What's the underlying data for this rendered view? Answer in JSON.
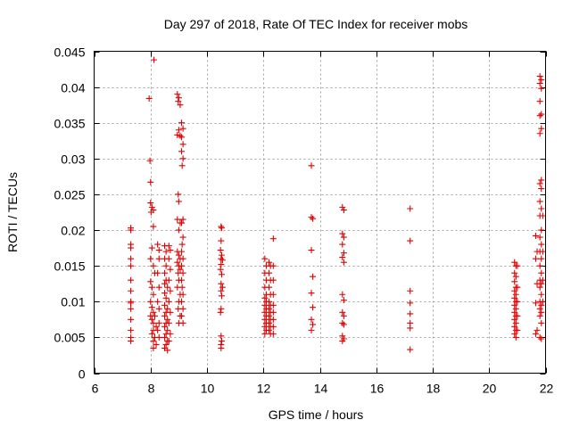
{
  "chart_data": {
    "type": "scatter",
    "title": "Day 297 of 2018, Rate Of TEC Index for receiver mobs",
    "xlabel": "GPS time / hours",
    "ylabel": "ROTI / TECUs",
    "xlim": [
      6,
      22
    ],
    "ylim": [
      0,
      0.045
    ],
    "x_ticks": [
      6,
      8,
      10,
      12,
      14,
      16,
      18,
      20,
      22
    ],
    "x_tick_labels": [
      "6",
      "8",
      "10",
      "12",
      "14",
      "16",
      "18",
      "20",
      "22"
    ],
    "y_ticks": [
      0,
      0.005,
      0.01,
      0.015,
      0.02,
      0.025,
      0.03,
      0.035,
      0.04,
      0.045
    ],
    "y_tick_labels": [
      "0",
      "0.005",
      "0.01",
      "0.015",
      "0.02",
      "0.025",
      "0.03",
      "0.035",
      "0.04",
      "0.045"
    ],
    "grid": true,
    "marker": "plus",
    "color": "#e00000",
    "series": [
      {
        "name": "ROTI",
        "points": [
          [
            7.3,
            0.0203
          ],
          [
            7.3,
            0.02
          ],
          [
            7.3,
            0.018
          ],
          [
            7.3,
            0.0175
          ],
          [
            7.3,
            0.016
          ],
          [
            7.3,
            0.015
          ],
          [
            7.3,
            0.013
          ],
          [
            7.3,
            0.0115
          ],
          [
            7.3,
            0.01
          ],
          [
            7.3,
            0.0098
          ],
          [
            7.3,
            0.009
          ],
          [
            7.3,
            0.0075
          ],
          [
            7.3,
            0.006
          ],
          [
            7.3,
            0.005
          ],
          [
            7.3,
            0.0045
          ],
          [
            7.95,
            0.0384
          ],
          [
            7.98,
            0.0297
          ],
          [
            8.0,
            0.0267
          ],
          [
            8.0,
            0.0238
          ],
          [
            8.02,
            0.0225
          ],
          [
            8.05,
            0.0232
          ],
          [
            8.1,
            0.0228
          ],
          [
            8.1,
            0.0205
          ],
          [
            8.05,
            0.0175
          ],
          [
            8.0,
            0.016
          ],
          [
            8.1,
            0.015
          ],
          [
            8.15,
            0.014
          ],
          [
            8.0,
            0.0128
          ],
          [
            8.05,
            0.012
          ],
          [
            8.1,
            0.011
          ],
          [
            8.0,
            0.01
          ],
          [
            8.05,
            0.0092
          ],
          [
            8.1,
            0.0085
          ],
          [
            8.0,
            0.008
          ],
          [
            8.15,
            0.008
          ],
          [
            8.05,
            0.0075
          ],
          [
            8.1,
            0.007
          ],
          [
            8.2,
            0.0065
          ],
          [
            8.1,
            0.006
          ],
          [
            8.05,
            0.0055
          ],
          [
            8.15,
            0.005
          ],
          [
            8.1,
            0.0045
          ],
          [
            8.2,
            0.004
          ],
          [
            8.1,
            0.0035
          ],
          [
            8.12,
            0.0438
          ],
          [
            8.25,
            0.018
          ],
          [
            8.3,
            0.0172
          ],
          [
            8.3,
            0.016
          ],
          [
            8.25,
            0.014
          ],
          [
            8.3,
            0.012
          ],
          [
            8.25,
            0.01
          ],
          [
            8.3,
            0.009
          ],
          [
            8.3,
            0.007
          ],
          [
            8.25,
            0.006
          ],
          [
            8.3,
            0.005
          ],
          [
            8.5,
            0.0178
          ],
          [
            8.55,
            0.017
          ],
          [
            8.5,
            0.016
          ],
          [
            8.55,
            0.015
          ],
          [
            8.5,
            0.014
          ],
          [
            8.55,
            0.013
          ],
          [
            8.5,
            0.0125
          ],
          [
            8.6,
            0.012
          ],
          [
            8.5,
            0.0112
          ],
          [
            8.55,
            0.0105
          ],
          [
            8.5,
            0.0095
          ],
          [
            8.6,
            0.009
          ],
          [
            8.55,
            0.0085
          ],
          [
            8.5,
            0.008
          ],
          [
            8.6,
            0.0075
          ],
          [
            8.55,
            0.007
          ],
          [
            8.5,
            0.0065
          ],
          [
            8.6,
            0.006
          ],
          [
            8.55,
            0.0055
          ],
          [
            8.5,
            0.005
          ],
          [
            8.6,
            0.0045
          ],
          [
            8.55,
            0.004
          ],
          [
            8.5,
            0.0035
          ],
          [
            8.6,
            0.0032
          ],
          [
            8.65,
            0.0178
          ],
          [
            8.7,
            0.0172
          ],
          [
            8.65,
            0.016
          ],
          [
            8.7,
            0.0145
          ],
          [
            8.65,
            0.013
          ],
          [
            8.7,
            0.0115
          ],
          [
            8.65,
            0.01
          ],
          [
            8.7,
            0.0085
          ],
          [
            8.65,
            0.007
          ],
          [
            8.7,
            0.0055
          ],
          [
            8.65,
            0.0045
          ],
          [
            8.95,
            0.039
          ],
          [
            9.0,
            0.0385
          ],
          [
            8.98,
            0.038
          ],
          [
            9.05,
            0.0375
          ],
          [
            9.0,
            0.034
          ],
          [
            8.95,
            0.0333
          ],
          [
            9.05,
            0.0332
          ],
          [
            8.98,
            0.025
          ],
          [
            9.0,
            0.024
          ],
          [
            8.95,
            0.0215
          ],
          [
            9.05,
            0.021
          ],
          [
            9.0,
            0.02
          ],
          [
            8.95,
            0.017
          ],
          [
            9.0,
            0.0165
          ],
          [
            9.05,
            0.016
          ],
          [
            8.95,
            0.0155
          ],
          [
            9.0,
            0.015
          ],
          [
            9.05,
            0.0145
          ],
          [
            8.98,
            0.014
          ],
          [
            9.0,
            0.013
          ],
          [
            8.95,
            0.012
          ],
          [
            9.05,
            0.011
          ],
          [
            9.0,
            0.01
          ],
          [
            8.98,
            0.009
          ],
          [
            9.05,
            0.008
          ],
          [
            9.0,
            0.007
          ],
          [
            9.1,
            0.035
          ],
          [
            9.15,
            0.0342
          ],
          [
            9.1,
            0.033
          ],
          [
            9.15,
            0.032
          ],
          [
            9.1,
            0.031
          ],
          [
            9.15,
            0.03
          ],
          [
            9.12,
            0.029
          ],
          [
            9.15,
            0.0215
          ],
          [
            9.1,
            0.021
          ],
          [
            9.15,
            0.019
          ],
          [
            9.12,
            0.018
          ],
          [
            9.1,
            0.017
          ],
          [
            9.15,
            0.016
          ],
          [
            9.1,
            0.015
          ],
          [
            9.15,
            0.014
          ],
          [
            9.1,
            0.013
          ],
          [
            9.12,
            0.012
          ],
          [
            9.15,
            0.011
          ],
          [
            9.1,
            0.01
          ],
          [
            9.15,
            0.009
          ],
          [
            9.1,
            0.008
          ],
          [
            9.15,
            0.007
          ],
          [
            10.5,
            0.0205
          ],
          [
            10.52,
            0.0203
          ],
          [
            10.5,
            0.0185
          ],
          [
            10.48,
            0.0172
          ],
          [
            10.52,
            0.0165
          ],
          [
            10.5,
            0.016
          ],
          [
            10.55,
            0.0158
          ],
          [
            10.5,
            0.0152
          ],
          [
            10.48,
            0.0145
          ],
          [
            10.52,
            0.0138
          ],
          [
            10.5,
            0.0125
          ],
          [
            10.55,
            0.012
          ],
          [
            10.5,
            0.0115
          ],
          [
            10.52,
            0.0108
          ],
          [
            10.5,
            0.009
          ],
          [
            10.48,
            0.0085
          ],
          [
            10.5,
            0.0052
          ],
          [
            10.52,
            0.0045
          ],
          [
            10.5,
            0.004
          ],
          [
            10.5,
            0.0035
          ],
          [
            12.05,
            0.016
          ],
          [
            12.1,
            0.015
          ],
          [
            12.05,
            0.014
          ],
          [
            12.1,
            0.013
          ],
          [
            12.05,
            0.012
          ],
          [
            12.1,
            0.011
          ],
          [
            12.05,
            0.0105
          ],
          [
            12.1,
            0.01
          ],
          [
            12.05,
            0.0095
          ],
          [
            12.1,
            0.009
          ],
          [
            12.05,
            0.0085
          ],
          [
            12.1,
            0.008
          ],
          [
            12.05,
            0.0075
          ],
          [
            12.1,
            0.007
          ],
          [
            12.05,
            0.0065
          ],
          [
            12.1,
            0.006
          ],
          [
            12.05,
            0.0055
          ],
          [
            12.2,
            0.0155
          ],
          [
            12.25,
            0.015
          ],
          [
            12.2,
            0.014
          ],
          [
            12.25,
            0.013
          ],
          [
            12.2,
            0.012
          ],
          [
            12.25,
            0.011
          ],
          [
            12.2,
            0.01
          ],
          [
            12.25,
            0.0095
          ],
          [
            12.2,
            0.009
          ],
          [
            12.25,
            0.0085
          ],
          [
            12.2,
            0.008
          ],
          [
            12.25,
            0.0075
          ],
          [
            12.2,
            0.007
          ],
          [
            12.25,
            0.0065
          ],
          [
            12.2,
            0.006
          ],
          [
            12.25,
            0.0055
          ],
          [
            12.35,
            0.0188
          ],
          [
            12.35,
            0.015
          ],
          [
            12.35,
            0.013
          ],
          [
            12.35,
            0.011
          ],
          [
            12.35,
            0.0095
          ],
          [
            12.35,
            0.0085
          ],
          [
            12.35,
            0.0075
          ],
          [
            12.35,
            0.0065
          ],
          [
            12.35,
            0.0055
          ],
          [
            13.7,
            0.029
          ],
          [
            13.7,
            0.0218
          ],
          [
            13.75,
            0.0216
          ],
          [
            13.7,
            0.0172
          ],
          [
            13.75,
            0.0135
          ],
          [
            13.7,
            0.0112
          ],
          [
            13.75,
            0.0092
          ],
          [
            13.7,
            0.0075
          ],
          [
            13.75,
            0.0068
          ],
          [
            13.7,
            0.006
          ],
          [
            14.8,
            0.0232
          ],
          [
            14.85,
            0.0228
          ],
          [
            14.8,
            0.0195
          ],
          [
            14.85,
            0.019
          ],
          [
            14.8,
            0.018
          ],
          [
            14.85,
            0.0168
          ],
          [
            14.8,
            0.0162
          ],
          [
            14.85,
            0.0155
          ],
          [
            14.8,
            0.011
          ],
          [
            14.85,
            0.0102
          ],
          [
            14.8,
            0.0085
          ],
          [
            14.85,
            0.008
          ],
          [
            14.8,
            0.007
          ],
          [
            14.85,
            0.0068
          ],
          [
            14.8,
            0.0052
          ],
          [
            14.85,
            0.0048
          ],
          [
            14.8,
            0.0045
          ],
          [
            17.2,
            0.023
          ],
          [
            17.2,
            0.0185
          ],
          [
            17.2,
            0.0115
          ],
          [
            17.2,
            0.0098
          ],
          [
            17.2,
            0.0083
          ],
          [
            17.2,
            0.007
          ],
          [
            17.2,
            0.0063
          ],
          [
            17.2,
            0.0033
          ],
          [
            20.9,
            0.0155
          ],
          [
            20.95,
            0.015
          ],
          [
            20.9,
            0.014
          ],
          [
            20.95,
            0.0135
          ],
          [
            20.9,
            0.0128
          ],
          [
            20.95,
            0.012
          ],
          [
            20.9,
            0.0115
          ],
          [
            20.95,
            0.011
          ],
          [
            20.9,
            0.0105
          ],
          [
            20.95,
            0.01
          ],
          [
            20.9,
            0.0095
          ],
          [
            20.95,
            0.009
          ],
          [
            20.9,
            0.0085
          ],
          [
            20.95,
            0.008
          ],
          [
            20.9,
            0.0075
          ],
          [
            20.95,
            0.007
          ],
          [
            20.9,
            0.0065
          ],
          [
            20.95,
            0.006
          ],
          [
            20.9,
            0.0055
          ],
          [
            20.95,
            0.005
          ],
          [
            21.0,
            0.015
          ],
          [
            21.0,
            0.012
          ],
          [
            21.0,
            0.01
          ],
          [
            21.0,
            0.008
          ],
          [
            21.0,
            0.006
          ],
          [
            21.65,
            0.0192
          ],
          [
            21.7,
            0.017
          ],
          [
            21.65,
            0.016
          ],
          [
            21.7,
            0.0125
          ],
          [
            21.65,
            0.0098
          ],
          [
            21.7,
            0.006
          ],
          [
            21.65,
            0.0055
          ],
          [
            21.8,
            0.0415
          ],
          [
            21.85,
            0.041
          ],
          [
            21.8,
            0.0405
          ],
          [
            21.85,
            0.0398
          ],
          [
            21.8,
            0.038
          ],
          [
            21.85,
            0.0362
          ],
          [
            21.8,
            0.036
          ],
          [
            21.85,
            0.0342
          ],
          [
            21.8,
            0.0335
          ],
          [
            21.85,
            0.027
          ],
          [
            21.8,
            0.0265
          ],
          [
            21.85,
            0.0258
          ],
          [
            21.8,
            0.024
          ],
          [
            21.85,
            0.023
          ],
          [
            21.8,
            0.022
          ],
          [
            21.85,
            0.02
          ],
          [
            21.8,
            0.019
          ],
          [
            21.85,
            0.018
          ],
          [
            21.8,
            0.017
          ],
          [
            21.85,
            0.016
          ],
          [
            21.8,
            0.015
          ],
          [
            21.85,
            0.014
          ],
          [
            21.8,
            0.013
          ],
          [
            21.85,
            0.0125
          ],
          [
            21.8,
            0.012
          ],
          [
            21.85,
            0.011
          ],
          [
            21.8,
            0.01
          ],
          [
            21.85,
            0.0095
          ],
          [
            21.8,
            0.009
          ],
          [
            21.85,
            0.0085
          ],
          [
            21.8,
            0.008
          ],
          [
            21.85,
            0.007
          ],
          [
            21.8,
            0.005
          ],
          [
            21.85,
            0.0048
          ],
          [
            21.9,
            0.013
          ],
          [
            21.9,
            0.01
          ],
          [
            21.9,
            0.017
          ],
          [
            21.9,
            0.022
          ]
        ]
      }
    ]
  }
}
